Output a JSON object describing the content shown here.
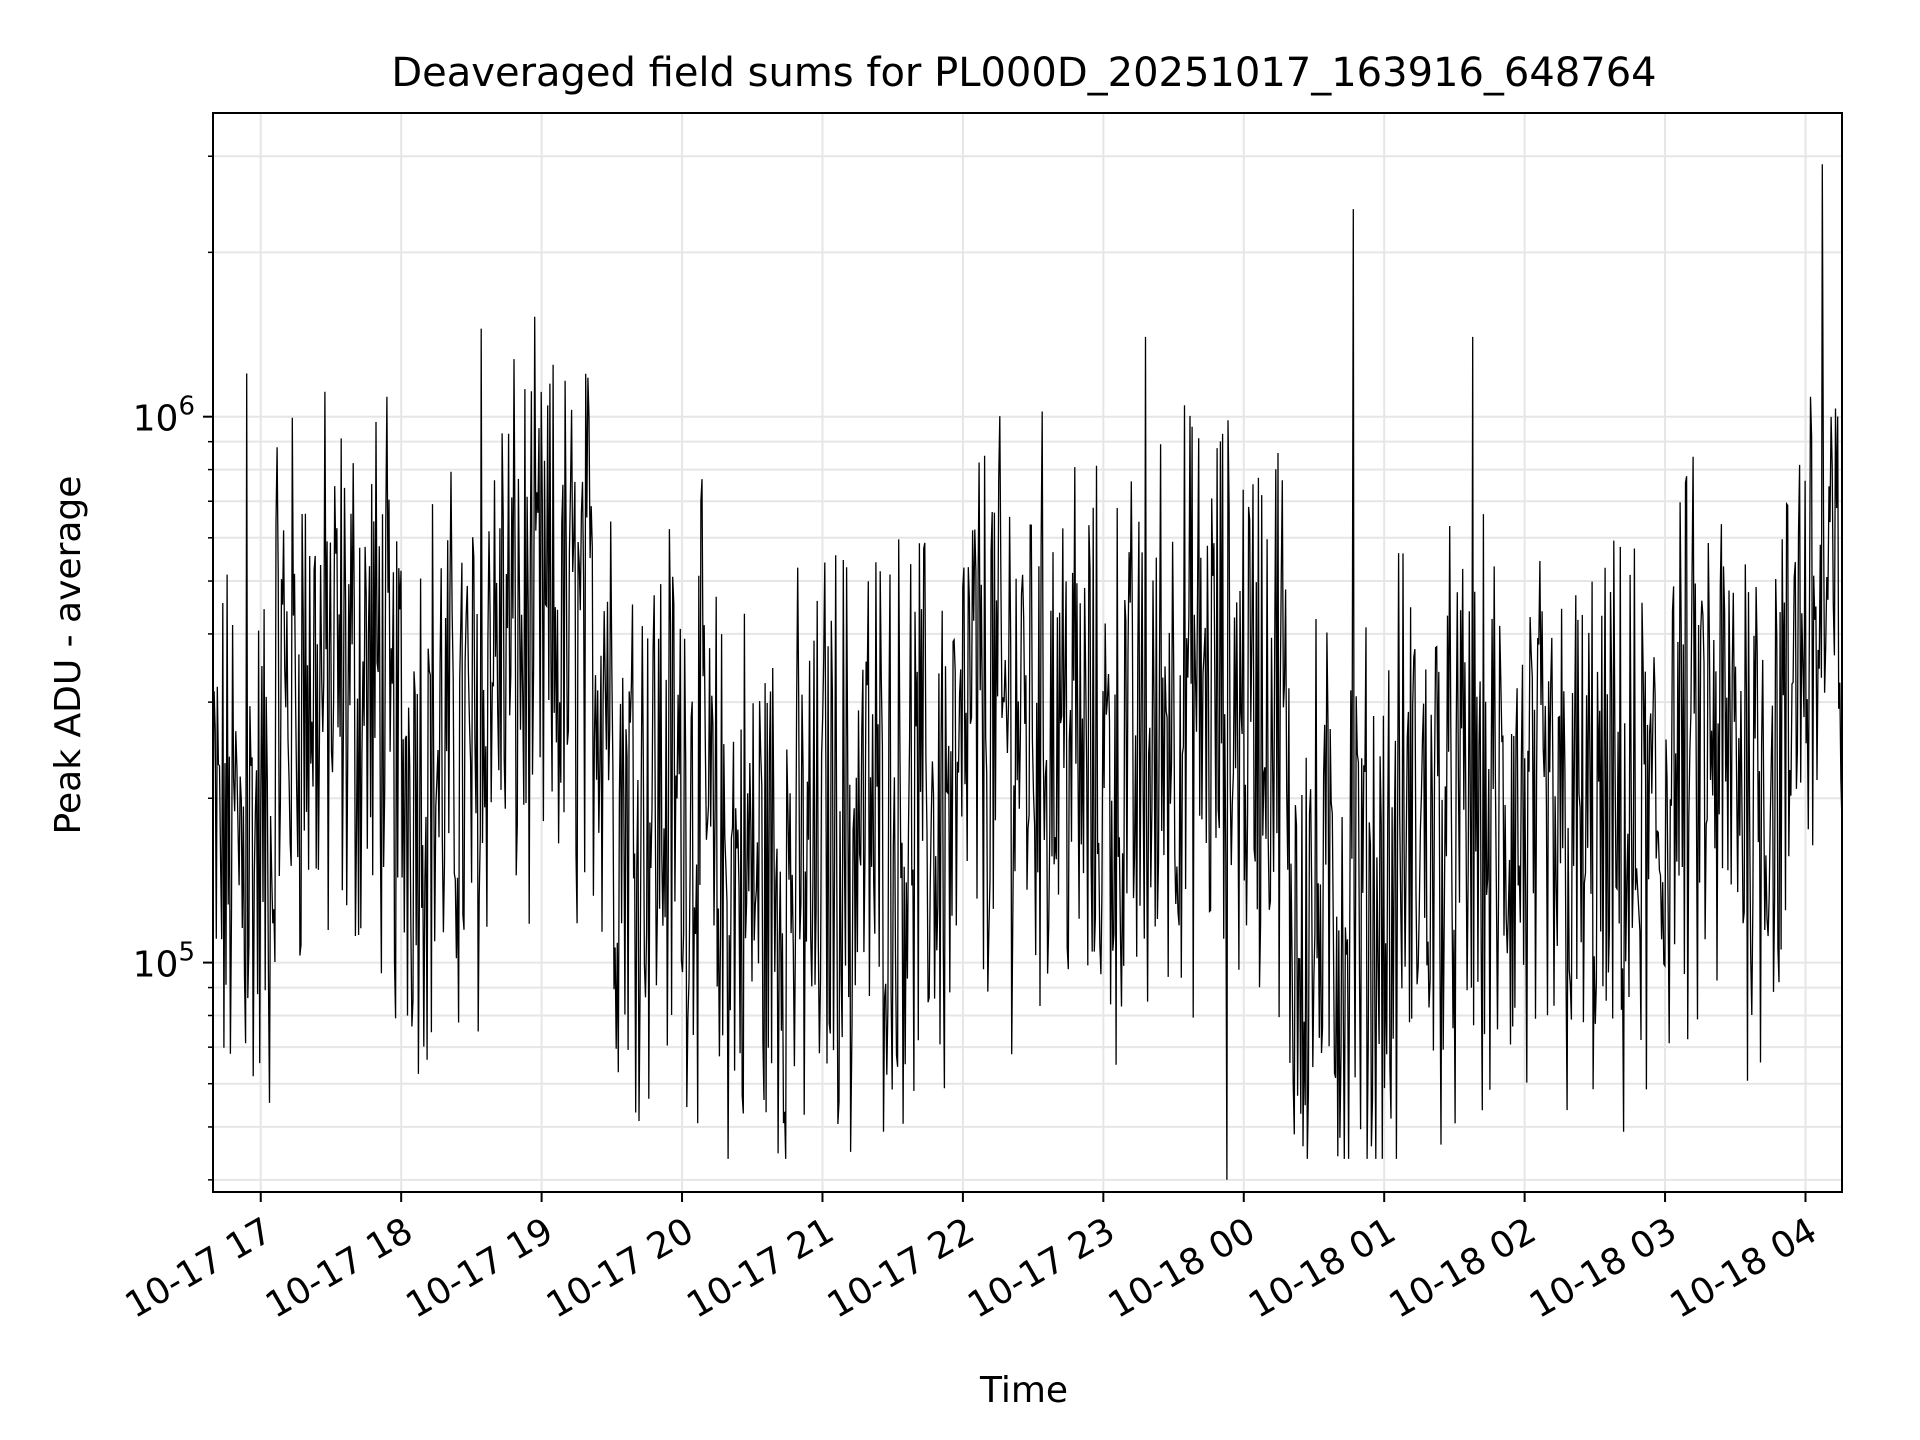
{
  "chart_data": {
    "type": "line",
    "title": "Deaveraged field sums for PL000D_20251017_163916_648764",
    "xlabel": "Time",
    "ylabel": "Peak ADU - average",
    "yscale": "log",
    "ylim": [
      38000,
      3600000
    ],
    "xlim_hours_from_2025_10_17_16_00": [
      0.66,
      12.26
    ],
    "grid": true,
    "x_ticks": [
      {
        "label": "10-17 17",
        "hour": 1
      },
      {
        "label": "10-17 18",
        "hour": 2
      },
      {
        "label": "10-17 19",
        "hour": 3
      },
      {
        "label": "10-17 20",
        "hour": 4
      },
      {
        "label": "10-17 21",
        "hour": 5
      },
      {
        "label": "10-17 22",
        "hour": 6
      },
      {
        "label": "10-17 23",
        "hour": 7
      },
      {
        "label": "10-18 00",
        "hour": 8
      },
      {
        "label": "10-18 01",
        "hour": 9
      },
      {
        "label": "10-18 02",
        "hour": 10
      },
      {
        "label": "10-18 03",
        "hour": 11
      },
      {
        "label": "10-18 04",
        "hour": 12
      }
    ],
    "y_ticks": [
      {
        "base": "10",
        "exp": "5",
        "value": 100000
      },
      {
        "base": "10",
        "exp": "6",
        "value": 1000000
      }
    ],
    "series": [
      {
        "name": "deaveraged field sum",
        "color": "#000000",
        "segments_hours": [
          {
            "start": 0.66,
            "end": 1.1,
            "median": 160000
          },
          {
            "start": 1.1,
            "end": 1.9,
            "median": 320000
          },
          {
            "start": 1.9,
            "end": 2.6,
            "median": 230000
          },
          {
            "start": 2.6,
            "end": 3.5,
            "median": 380000
          },
          {
            "start": 3.5,
            "end": 4.2,
            "median": 200000
          },
          {
            "start": 4.2,
            "end": 5.0,
            "median": 140000
          },
          {
            "start": 5.0,
            "end": 6.0,
            "median": 180000
          },
          {
            "start": 6.0,
            "end": 6.8,
            "median": 280000
          },
          {
            "start": 6.8,
            "end": 7.4,
            "median": 220000
          },
          {
            "start": 7.4,
            "end": 8.3,
            "median": 300000
          },
          {
            "start": 8.3,
            "end": 9.1,
            "median": 120000
          },
          {
            "start": 9.1,
            "end": 10.0,
            "median": 170000
          },
          {
            "start": 10.0,
            "end": 11.0,
            "median": 160000
          },
          {
            "start": 11.0,
            "end": 11.9,
            "median": 230000
          },
          {
            "start": 11.9,
            "end": 12.26,
            "median": 420000
          }
        ],
        "spikes": [
          {
            "hour": 0.9,
            "value": 1200000
          },
          {
            "hour": 2.57,
            "value": 1450000
          },
          {
            "hour": 5.2,
            "value": 45000
          },
          {
            "hour": 7.3,
            "value": 1400000
          },
          {
            "hour": 8.78,
            "value": 2400000
          },
          {
            "hour": 7.88,
            "value": 40000
          },
          {
            "hour": 9.63,
            "value": 1400000
          },
          {
            "hour": 12.12,
            "value": 2900000
          }
        ]
      }
    ]
  }
}
